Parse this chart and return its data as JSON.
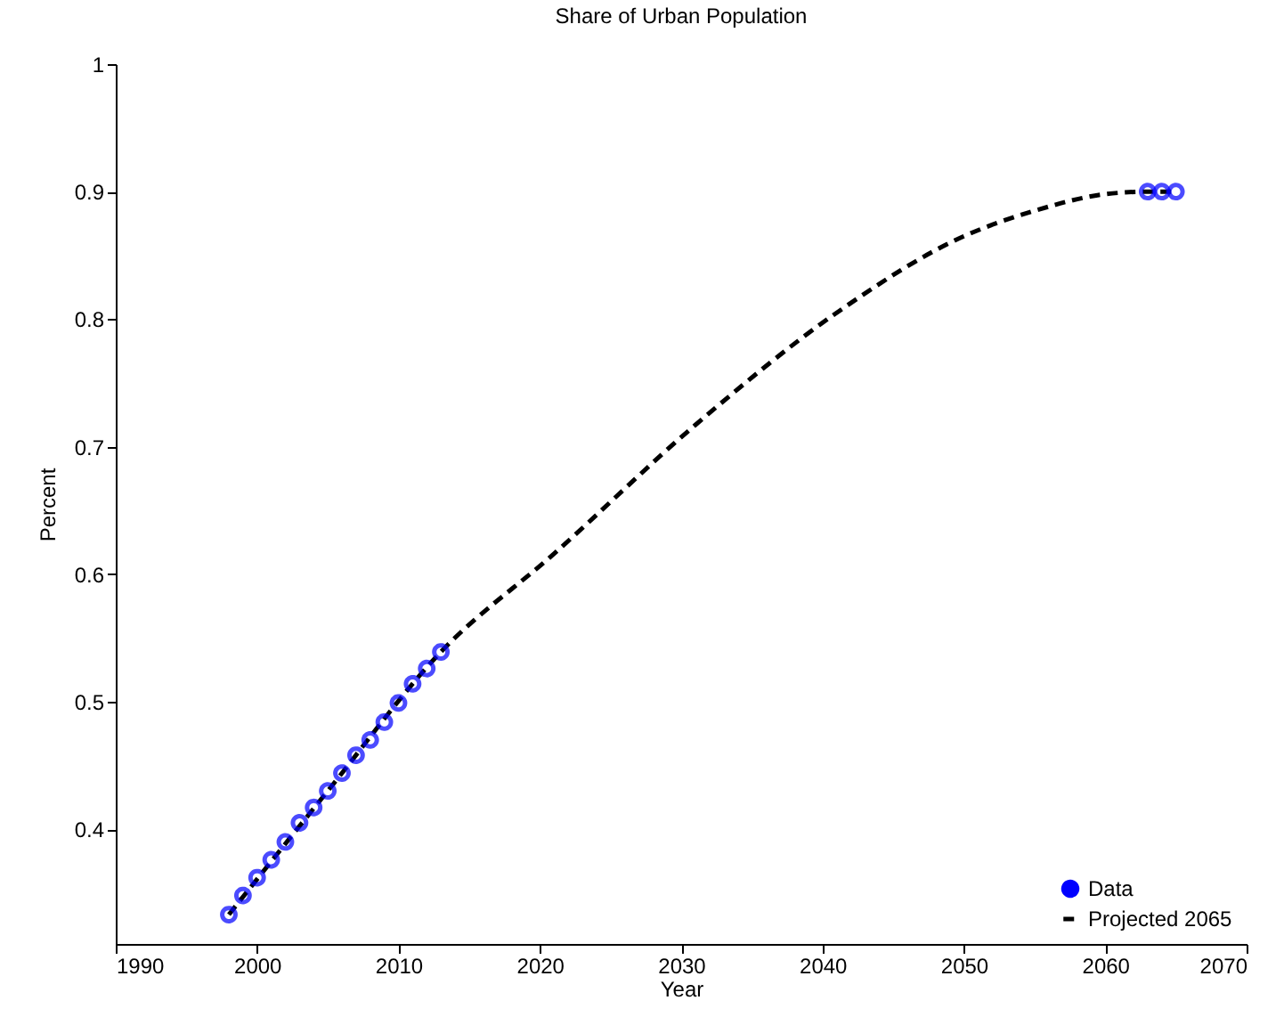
{
  "chart_data": {
    "type": "scatter",
    "title": "Share of Urban Population",
    "xlabel": "Year",
    "ylabel": "Percent",
    "xlim": [
      1990,
      2070
    ],
    "xticks": [
      1990,
      2000,
      2010,
      2020,
      2030,
      2040,
      2050,
      2060,
      2070
    ],
    "ylim": [
      0.31,
      1
    ],
    "yticks": [
      0.4,
      0.5,
      0.6,
      0.7,
      0.8,
      0.9,
      1
    ],
    "grid": false,
    "legend": "bottom right",
    "line_style": "dashed",
    "series": [
      {
        "name": "Data",
        "marker": "circle",
        "color": "#0000ff",
        "x": [
          1998,
          1999,
          2000,
          2001,
          2002,
          2003,
          2004,
          2005,
          2006,
          2007,
          2008,
          2009,
          2010,
          2011,
          2012,
          2013,
          2063,
          2064,
          2065
        ],
        "values": [
          0.333,
          0.348,
          0.362,
          0.376,
          0.39,
          0.405,
          0.417,
          0.43,
          0.444,
          0.458,
          0.47,
          0.484,
          0.499,
          0.514,
          0.526,
          0.539,
          0.9,
          0.9,
          0.9
        ]
      },
      {
        "name": "Projected 2065",
        "type": "line",
        "marker": "none",
        "color": "#000000",
        "x": [
          1998,
          2005,
          2013,
          2021,
          2031,
          2041,
          2050,
          2055,
          2060,
          2063,
          2065
        ],
        "values": [
          0.333,
          0.43,
          0.539,
          0.616,
          0.717,
          0.805,
          0.865,
          0.885,
          0.898,
          0.9,
          0.9
        ]
      }
    ]
  }
}
